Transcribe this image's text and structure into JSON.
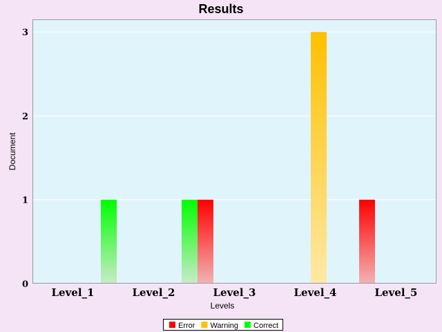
{
  "chart_data": {
    "type": "bar",
    "title": "Results",
    "xlabel": "Levels",
    "ylabel": "Document",
    "categories": [
      "Level_1",
      "Level_2",
      "Level_3",
      "Level_4",
      "Level_5"
    ],
    "series": [
      {
        "name": "Error",
        "values": [
          0,
          0,
          1,
          0,
          1
        ],
        "color": "#ff0000"
      },
      {
        "name": "Warning",
        "values": [
          0,
          0,
          0,
          3,
          0
        ],
        "color": "#ffc000"
      },
      {
        "name": "Correct",
        "values": [
          1,
          1,
          0,
          0,
          0
        ],
        "color": "#00ff00"
      }
    ],
    "yticks": [
      0,
      1,
      2,
      3
    ],
    "ylim": [
      0,
      3.15
    ],
    "grid": true,
    "legend_position": "bottom",
    "colors": {
      "page_background": "#f4e4f6",
      "plot_background": "#e0f4fc",
      "gridline": "#ffffff"
    }
  }
}
